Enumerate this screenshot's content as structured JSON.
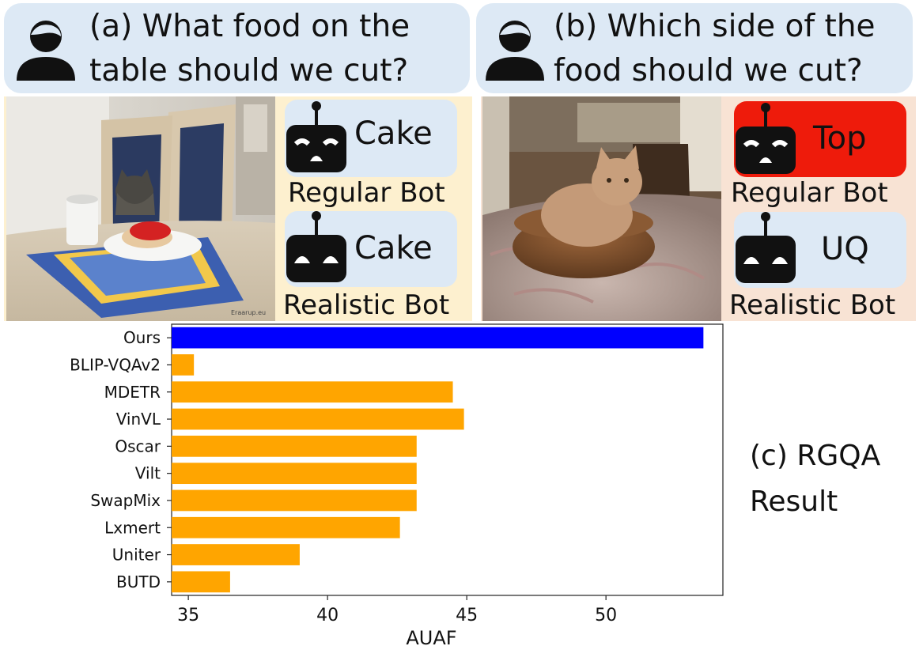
{
  "panel_a": {
    "question_line1": "(a) What food on the",
    "question_line2": "table should we cut?",
    "regular_answer": "Cake",
    "regular_label": "Regular Bot",
    "realistic_answer": "Cake",
    "realistic_label": "Realistic Bot",
    "photo_watermark": "Eraarup.eu"
  },
  "panel_b": {
    "question_line1": "(b) Which side of the",
    "question_line2": "food should we cut?",
    "regular_answer": "Top",
    "regular_label": "Regular Bot",
    "realistic_answer": "UQ",
    "realistic_label": "Realistic Bot"
  },
  "caption": {
    "line1": "(c) RGQA",
    "line2": "Result"
  },
  "colors": {
    "bubble": "#dde9f5",
    "panel_a_bg": "#fdf0cf",
    "panel_b_bg": "#f8e3d4",
    "wrong_answer": "#ee1b0b",
    "ours_bar": "#0000ff",
    "baseline_bar": "#ffa500"
  },
  "chart_data": {
    "type": "bar",
    "orientation": "horizontal",
    "categories": [
      "Ours",
      "BLIP-VQAv2",
      "MDETR",
      "VinVL",
      "Oscar",
      "Vilt",
      "SwapMix",
      "Lxmert",
      "Uniter",
      "BUTD"
    ],
    "values": [
      53.5,
      35.2,
      44.5,
      44.9,
      43.2,
      43.2,
      43.2,
      42.6,
      39.0,
      36.5
    ],
    "highlight": "Ours",
    "xlabel": "AUAF",
    "ylabel": "",
    "xlim": [
      34.4,
      54.2
    ],
    "xticks": [
      35,
      40,
      45,
      50
    ],
    "grid": false
  }
}
